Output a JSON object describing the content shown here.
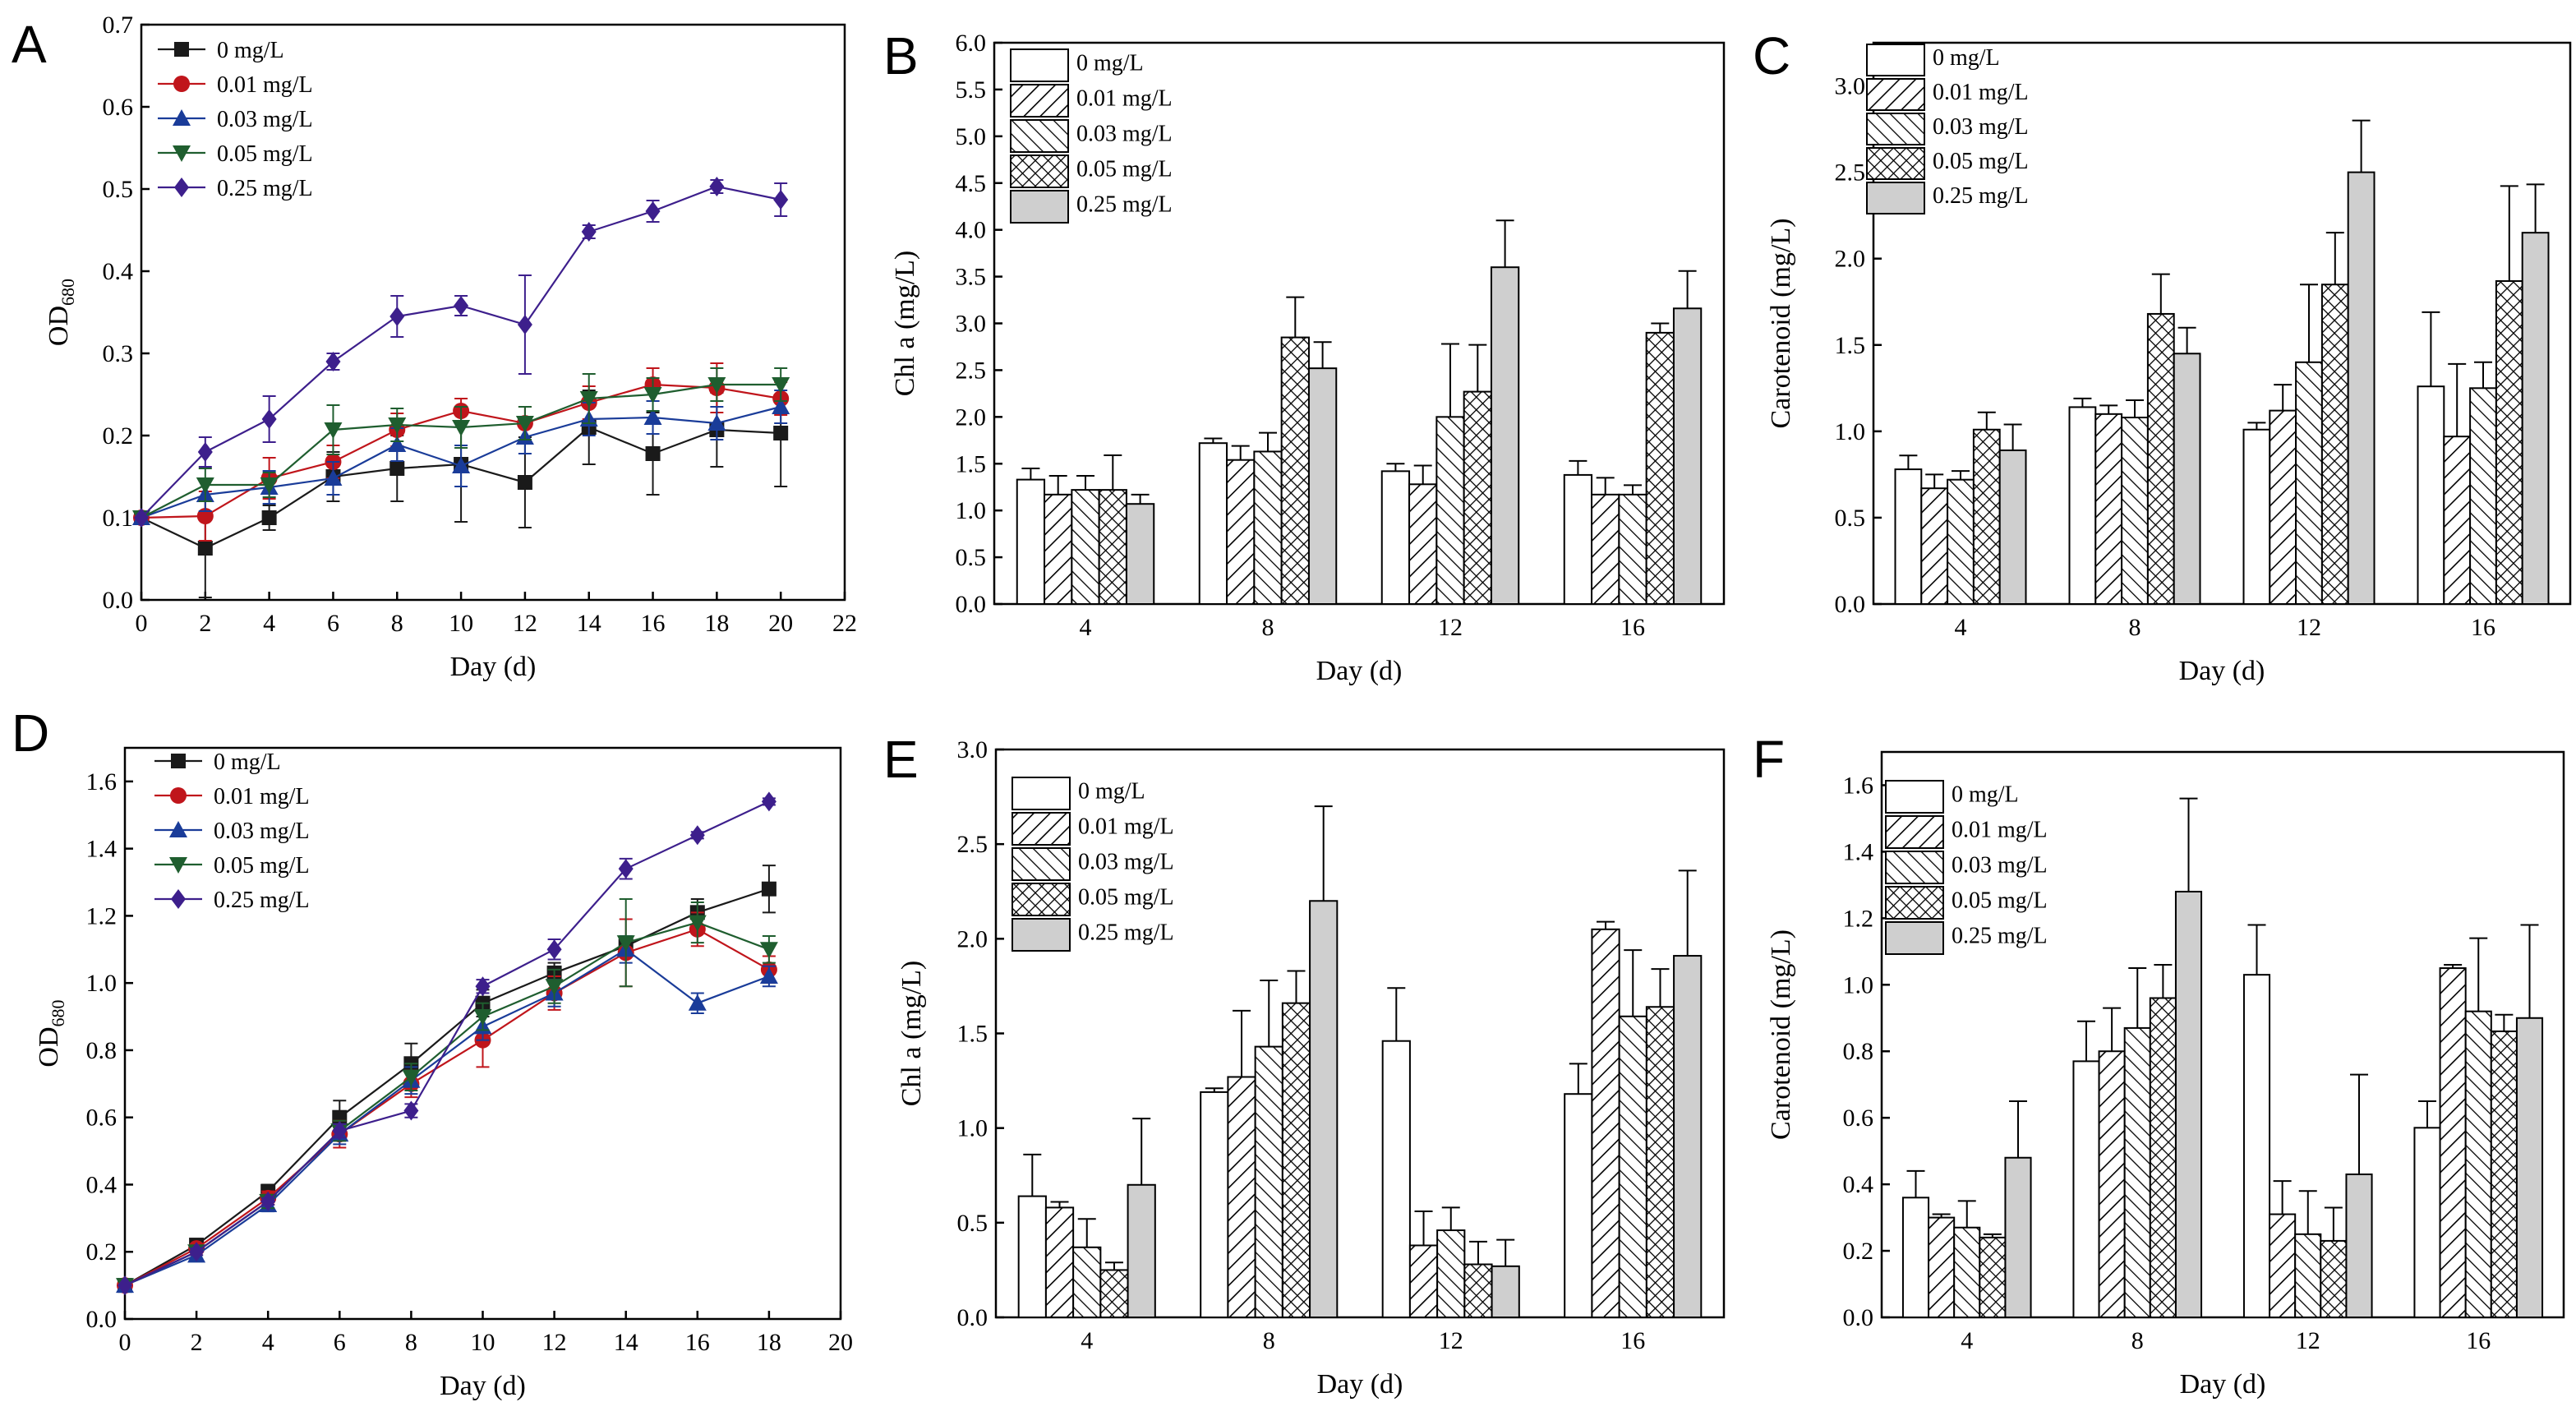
{
  "figure": {
    "letters": [
      "A",
      "B",
      "C",
      "D",
      "E",
      "F"
    ]
  },
  "legend_labels": [
    "0 mg/L",
    "0.01 mg/L",
    "0.03 mg/L",
    "0.05 mg/L",
    "0.25 mg/L"
  ],
  "series_colors": [
    "#1a1a1a",
    "#c0151b",
    "#1a3c99",
    "#1f5e2f",
    "#3d1f8c"
  ],
  "chart_data": [
    {
      "id": "A",
      "type": "line",
      "xlabel": "Day  (d)",
      "ylabel": "OD",
      "ylabel_sub": "680",
      "xlim": [
        0,
        22
      ],
      "ylim": [
        0,
        0.7
      ],
      "xticks": [
        0,
        2,
        4,
        6,
        8,
        10,
        12,
        14,
        16,
        18,
        20,
        22
      ],
      "yticks": [
        0.0,
        0.1,
        0.2,
        0.3,
        0.4,
        0.5,
        0.6,
        0.7
      ],
      "tick_labels": [
        "0.0",
        "0.1",
        "0.2",
        "0.3",
        "0.4",
        "0.5",
        "0.6",
        "0.7"
      ],
      "x": [
        0,
        2,
        4,
        6,
        8,
        10,
        12,
        14,
        16,
        18,
        20
      ],
      "series": [
        {
          "name": "0 mg/L",
          "marker": "square",
          "values": [
            0.1,
            0.063,
            0.1,
            0.15,
            0.16,
            0.165,
            0.143,
            0.21,
            0.178,
            0.207,
            0.203
          ],
          "errors": [
            0,
            0.06,
            0.015,
            0.03,
            0.04,
            0.07,
            0.055,
            0.045,
            0.05,
            0.045,
            0.065
          ]
        },
        {
          "name": "0.01 mg/L",
          "marker": "circle",
          "values": [
            0.1,
            0.102,
            0.148,
            0.168,
            0.207,
            0.23,
            0.215,
            0.24,
            0.262,
            0.258,
            0.245
          ],
          "errors": [
            0,
            0.03,
            0.025,
            0.02,
            0.02,
            0.015,
            0.02,
            0.02,
            0.02,
            0.03,
            0.02
          ]
        },
        {
          "name": "0.03 mg/L",
          "marker": "triangle-up",
          "values": [
            0.1,
            0.128,
            0.137,
            0.148,
            0.189,
            0.163,
            0.198,
            0.22,
            0.222,
            0.215,
            0.235
          ],
          "errors": [
            0,
            0.02,
            0.02,
            0.02,
            0.02,
            0.025,
            0.02,
            0.02,
            0.02,
            0.02,
            0.02
          ]
        },
        {
          "name": "0.05 mg/L",
          "marker": "triangle-down",
          "values": [
            0.1,
            0.14,
            0.14,
            0.207,
            0.213,
            0.21,
            0.215,
            0.245,
            0.25,
            0.262,
            0.262
          ],
          "errors": [
            0,
            0.02,
            0.015,
            0.03,
            0.02,
            0.025,
            0.02,
            0.03,
            0.02,
            0.02,
            0.02
          ]
        },
        {
          "name": "0.25 mg/L",
          "marker": "diamond",
          "values": [
            0.1,
            0.18,
            0.22,
            0.29,
            0.345,
            0.358,
            0.335,
            0.448,
            0.473,
            0.503,
            0.487
          ],
          "errors": [
            0,
            0.018,
            0.028,
            0.01,
            0.025,
            0.012,
            0.06,
            0.008,
            0.013,
            0.008,
            0.02
          ]
        }
      ]
    },
    {
      "id": "B",
      "type": "bar",
      "xlabel": "Day  (d)",
      "ylabel": "Chl a (mg/L)",
      "categories": [
        "4",
        "8",
        "12",
        "16"
      ],
      "ylim": [
        0,
        6.0
      ],
      "yticks": [
        0.0,
        0.5,
        1.0,
        1.5,
        2.0,
        2.5,
        3.0,
        3.5,
        4.0,
        4.5,
        5.0,
        5.5,
        6.0
      ],
      "tick_labels": [
        "0.0",
        "0.5",
        "1.0",
        "1.5",
        "2.0",
        "2.5",
        "3.0",
        "3.5",
        "4.0",
        "4.5",
        "5.0",
        "5.5",
        "6.0"
      ],
      "series": [
        {
          "name": "0 mg/L",
          "values": [
            1.33,
            1.72,
            1.42,
            1.38
          ],
          "errors": [
            0.12,
            0.05,
            0.08,
            0.15
          ]
        },
        {
          "name": "0.01 mg/L",
          "values": [
            1.17,
            1.54,
            1.28,
            1.17
          ],
          "errors": [
            0.2,
            0.15,
            0.2,
            0.18
          ]
        },
        {
          "name": "0.03 mg/L",
          "values": [
            1.22,
            1.63,
            2.0,
            1.17
          ],
          "errors": [
            0.15,
            0.2,
            0.78,
            0.1
          ]
        },
        {
          "name": "0.05 mg/L",
          "values": [
            1.22,
            2.85,
            2.27,
            2.9
          ],
          "errors": [
            0.37,
            0.43,
            0.5,
            0.1
          ]
        },
        {
          "name": "0.25 mg/L",
          "values": [
            1.07,
            2.52,
            3.6,
            3.16
          ],
          "errors": [
            0.1,
            0.28,
            0.5,
            0.4
          ]
        }
      ]
    },
    {
      "id": "C",
      "type": "bar",
      "xlabel": "Day  (d)",
      "ylabel": "Carotenoid  (mg/L)",
      "categories": [
        "4",
        "8",
        "12",
        "16"
      ],
      "ylim": [
        0,
        3.25
      ],
      "yticks": [
        0.0,
        0.5,
        1.0,
        1.5,
        2.0,
        2.5,
        3.0
      ],
      "tick_labels": [
        "0.0",
        "0.5",
        "1.0",
        "1.5",
        "2.0",
        "2.5",
        "3.0"
      ],
      "series": [
        {
          "name": "0 mg/L",
          "values": [
            0.78,
            1.14,
            1.01,
            1.26
          ],
          "errors": [
            0.08,
            0.05,
            0.04,
            0.43
          ]
        },
        {
          "name": "0.01 mg/L",
          "values": [
            0.67,
            1.1,
            1.12,
            0.97
          ],
          "errors": [
            0.08,
            0.05,
            0.15,
            0.42
          ]
        },
        {
          "name": "0.03 mg/L",
          "values": [
            0.72,
            1.08,
            1.4,
            1.25
          ],
          "errors": [
            0.05,
            0.1,
            0.45,
            0.15
          ]
        },
        {
          "name": "0.05 mg/L",
          "values": [
            1.01,
            1.68,
            1.85,
            1.87
          ],
          "errors": [
            0.1,
            0.23,
            0.3,
            0.55
          ]
        },
        {
          "name": "0.25 mg/L",
          "values": [
            0.89,
            1.45,
            2.5,
            2.15
          ],
          "errors": [
            0.15,
            0.15,
            0.3,
            0.28
          ]
        }
      ]
    },
    {
      "id": "D",
      "type": "line",
      "xlabel": "Day  (d)",
      "ylabel": "OD",
      "ylabel_sub": "680",
      "xlim": [
        0,
        20
      ],
      "ylim": [
        0,
        1.7
      ],
      "xticks": [
        0,
        2,
        4,
        6,
        8,
        10,
        12,
        14,
        16,
        18,
        20
      ],
      "yticks": [
        0.0,
        0.2,
        0.4,
        0.6,
        0.8,
        1.0,
        1.2,
        1.4,
        1.6
      ],
      "tick_labels": [
        "0.0",
        "0.2",
        "0.4",
        "0.6",
        "0.8",
        "1.0",
        "1.2",
        "1.4",
        "1.6"
      ],
      "x": [
        0,
        2,
        4,
        6,
        8,
        10,
        12,
        14,
        16,
        18
      ],
      "series": [
        {
          "name": "0 mg/L",
          "marker": "square",
          "values": [
            0.1,
            0.22,
            0.38,
            0.6,
            0.76,
            0.94,
            1.03,
            1.11,
            1.21,
            1.28
          ],
          "errors": [
            0,
            0.01,
            0.02,
            0.05,
            0.06,
            0.04,
            0.03,
            0.03,
            0.04,
            0.07
          ]
        },
        {
          "name": "0.01 mg/L",
          "marker": "circle",
          "values": [
            0.1,
            0.21,
            0.36,
            0.55,
            0.7,
            0.83,
            0.97,
            1.09,
            1.16,
            1.04
          ],
          "errors": [
            0,
            0.01,
            0.02,
            0.04,
            0.04,
            0.08,
            0.05,
            0.1,
            0.05,
            0.04
          ]
        },
        {
          "name": "0.03 mg/L",
          "marker": "triangle-up",
          "values": [
            0.1,
            0.19,
            0.34,
            0.55,
            0.71,
            0.87,
            0.97,
            1.1,
            0.94,
            1.02
          ],
          "errors": [
            0,
            0.01,
            0.02,
            0.03,
            0.04,
            0.04,
            0.04,
            0.04,
            0.03,
            0.03
          ]
        },
        {
          "name": "0.05 mg/L",
          "marker": "triangle-down",
          "values": [
            0.1,
            0.2,
            0.35,
            0.56,
            0.72,
            0.9,
            0.99,
            1.12,
            1.18,
            1.1
          ],
          "errors": [
            0,
            0.01,
            0.02,
            0.03,
            0.04,
            0.04,
            0.05,
            0.13,
            0.06,
            0.04
          ]
        },
        {
          "name": "0.25 mg/L",
          "marker": "diamond",
          "values": [
            0.1,
            0.2,
            0.35,
            0.56,
            0.62,
            0.99,
            1.1,
            1.34,
            1.44,
            1.54
          ],
          "errors": [
            0,
            0.01,
            0.01,
            0.02,
            0.02,
            0.02,
            0.03,
            0.03,
            0.01,
            0.01
          ]
        }
      ]
    },
    {
      "id": "E",
      "type": "bar",
      "xlabel": "Day  (d)",
      "ylabel": "Chl a (mg/L)",
      "categories": [
        "4",
        "8",
        "12",
        "16"
      ],
      "ylim": [
        0,
        3.0
      ],
      "yticks": [
        0.0,
        0.5,
        1.0,
        1.5,
        2.0,
        2.5,
        3.0
      ],
      "tick_labels": [
        "0.0",
        "0.5",
        "1.0",
        "1.5",
        "2.0",
        "2.5",
        "3.0"
      ],
      "series": [
        {
          "name": "0 mg/L",
          "values": [
            0.64,
            1.19,
            1.46,
            1.18
          ],
          "errors": [
            0.22,
            0.02,
            0.28,
            0.16
          ]
        },
        {
          "name": "0.01 mg/L",
          "values": [
            0.58,
            1.27,
            0.38,
            2.05
          ],
          "errors": [
            0.03,
            0.35,
            0.18,
            0.04
          ]
        },
        {
          "name": "0.03 mg/L",
          "values": [
            0.37,
            1.43,
            0.46,
            1.59
          ],
          "errors": [
            0.15,
            0.35,
            0.12,
            0.35
          ]
        },
        {
          "name": "0.05 mg/L",
          "values": [
            0.25,
            1.66,
            0.28,
            1.64
          ],
          "errors": [
            0.04,
            0.17,
            0.12,
            0.2
          ]
        },
        {
          "name": "0.25 mg/L",
          "values": [
            0.7,
            2.2,
            0.27,
            1.91
          ],
          "errors": [
            0.35,
            0.5,
            0.14,
            0.45
          ]
        }
      ]
    },
    {
      "id": "F",
      "type": "bar",
      "xlabel": "Day  (d)",
      "ylabel": "Carotenoid  (mg/L)",
      "categories": [
        "4",
        "8",
        "12",
        "16"
      ],
      "ylim": [
        0,
        1.7
      ],
      "yticks": [
        0.0,
        0.2,
        0.4,
        0.6,
        0.8,
        1.0,
        1.2,
        1.4,
        1.6
      ],
      "tick_labels": [
        "0.0",
        "0.2",
        "0.4",
        "0.6",
        "0.8",
        "1.0",
        "1.2",
        "1.4",
        "1.6"
      ],
      "series": [
        {
          "name": "0 mg/L",
          "values": [
            0.36,
            0.77,
            1.03,
            0.57
          ],
          "errors": [
            0.08,
            0.12,
            0.15,
            0.08
          ]
        },
        {
          "name": "0.01 mg/L",
          "values": [
            0.3,
            0.8,
            0.31,
            1.05
          ],
          "errors": [
            0.01,
            0.13,
            0.1,
            0.01
          ]
        },
        {
          "name": "0.03 mg/L",
          "values": [
            0.27,
            0.87,
            0.25,
            0.92
          ],
          "errors": [
            0.08,
            0.18,
            0.13,
            0.22
          ]
        },
        {
          "name": "0.05 mg/L",
          "values": [
            0.24,
            0.96,
            0.23,
            0.86
          ],
          "errors": [
            0.01,
            0.1,
            0.1,
            0.05
          ]
        },
        {
          "name": "0.25 mg/L",
          "values": [
            0.48,
            1.28,
            0.43,
            0.9
          ],
          "errors": [
            0.17,
            0.28,
            0.3,
            0.28
          ]
        }
      ]
    }
  ]
}
